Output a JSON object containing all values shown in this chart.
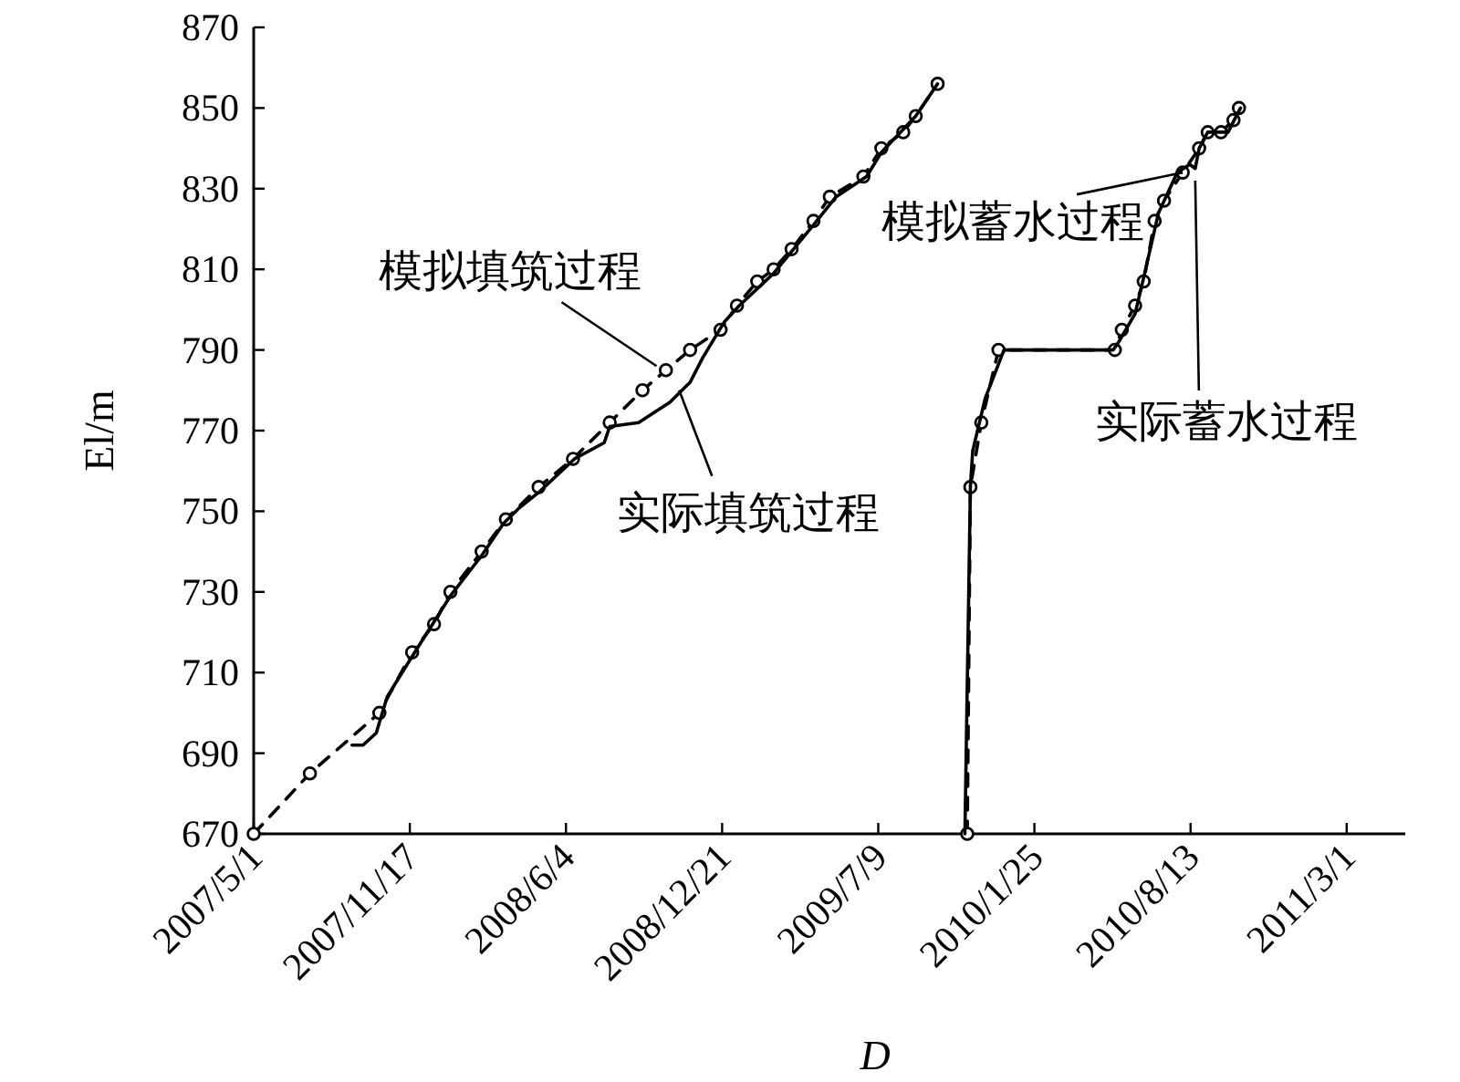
{
  "chart_data": {
    "type": "line",
    "xlabel": "D",
    "ylabel": "El/m",
    "xlim": [
      "2007-05-01",
      "2011-05-15"
    ],
    "ylim": [
      670,
      870
    ],
    "xticks": [
      {
        "value": "2007-05-01",
        "label": "2007/5/1"
      },
      {
        "value": "2007-11-17",
        "label": "2007/11/17"
      },
      {
        "value": "2008-06-04",
        "label": "2008/6/4"
      },
      {
        "value": "2008-12-21",
        "label": "2008/12/21"
      },
      {
        "value": "2009-07-09",
        "label": "2009/7/9"
      },
      {
        "value": "2010-01-25",
        "label": "2010/1/25"
      },
      {
        "value": "2010-08-13",
        "label": "2010/8/13"
      },
      {
        "value": "2011-03-01",
        "label": "2011/3/1"
      }
    ],
    "yticks": [
      670,
      690,
      710,
      730,
      750,
      770,
      790,
      810,
      830,
      850,
      870
    ],
    "grid": false,
    "series": [
      {
        "color": "#000000",
        "line_style": "dashed",
        "marker": "circle",
        "x": [
          "2007-05-01",
          "2007-07-12",
          "2007-10-09",
          "2007-11-20",
          "2007-12-18",
          "2008-01-08",
          "2008-02-17",
          "2008-03-19",
          "2008-04-30",
          "2008-06-13",
          "2008-07-30",
          "2008-09-10",
          "2008-10-10",
          "2008-11-10",
          "2008-12-19",
          "2009-01-09",
          "2009-02-04",
          "2009-02-25",
          "2009-03-20",
          "2009-04-17",
          "2009-05-08",
          "2009-06-20",
          "2009-07-13",
          "2009-08-10",
          "2009-08-26",
          "2009-09-23"
        ],
        "values": [
          670,
          685,
          700,
          715,
          722,
          730,
          740,
          748,
          756,
          763,
          772,
          780,
          785,
          790,
          795,
          801,
          807,
          810,
          815,
          822,
          828,
          833,
          840,
          844,
          848,
          856
        ]
      },
      {
        "color": "#000000",
        "line_style": "solid",
        "marker": "none",
        "x": [
          "2007-09-04",
          "2007-09-18",
          "2007-10-05",
          "2007-10-19",
          "2007-11-20",
          "2008-01-08",
          "2008-02-17",
          "2008-03-16",
          "2008-04-06",
          "2008-05-02",
          "2008-06-15",
          "2008-07-23",
          "2008-07-30",
          "2008-09-05",
          "2008-10-15",
          "2008-11-10",
          "2008-11-26",
          "2008-12-24",
          "2009-01-12",
          "2009-02-25",
          "2009-04-17",
          "2009-05-16",
          "2009-06-24",
          "2009-07-13",
          "2009-08-26",
          "2009-09-23"
        ],
        "values": [
          692,
          692,
          695,
          704,
          714,
          729,
          739,
          747,
          751,
          755,
          763,
          767,
          771,
          772,
          777,
          782,
          788,
          797,
          801,
          809,
          821,
          828,
          833,
          839,
          848,
          856
        ]
      },
      {
        "color": "#000000",
        "line_style": "dashed",
        "marker": "circle",
        "x": [
          "2009-10-31",
          "2009-11-04",
          "2009-11-18",
          "2009-12-10",
          "2010-05-08",
          "2010-05-17",
          "2010-06-03",
          "2010-06-14",
          "2010-06-28",
          "2010-07-10",
          "2010-08-03",
          "2010-08-24",
          "2010-09-04",
          "2010-09-21",
          "2010-10-07",
          "2010-10-14"
        ],
        "values": [
          670,
          756,
          772,
          790,
          790,
          795,
          801,
          807,
          822,
          827,
          834,
          840,
          844,
          844,
          847,
          850
        ]
      },
      {
        "color": "#000000",
        "line_style": "solid",
        "marker": "none",
        "x": [
          "2009-10-28",
          "2009-11-04",
          "2009-11-07",
          "2009-11-23",
          "2009-12-17",
          "2010-05-06",
          "2010-05-13",
          "2010-06-03",
          "2010-06-14",
          "2010-07-03",
          "2010-07-27",
          "2010-08-12",
          "2010-08-19",
          "2010-08-24",
          "2010-09-04",
          "2010-09-30",
          "2010-10-16"
        ],
        "values": [
          670,
          756,
          765,
          778,
          790,
          790,
          792,
          799,
          808,
          824,
          834,
          836,
          835,
          840,
          844,
          844,
          850
        ]
      }
    ],
    "annotations": [
      {
        "text": "模拟填筑过程",
        "x": "2008-09-28",
        "y": 786
      },
      {
        "text": "实际填筑过程",
        "x": "2008-10-27",
        "y": 780
      },
      {
        "text": "模拟蓄水过程",
        "x": "2010-08-03",
        "y": 834
      },
      {
        "text": "实际蓄水过程",
        "x": "2010-08-19",
        "y": 832
      }
    ]
  }
}
